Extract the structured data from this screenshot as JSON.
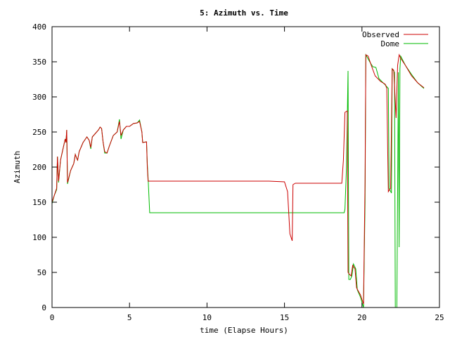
{
  "chart_data": {
    "type": "line",
    "title": "5: Azimuth vs. Time",
    "xlabel": "time (Elapse Hours)",
    "ylabel": "Azimuth",
    "xlim": [
      0,
      25
    ],
    "ylim": [
      0,
      400
    ],
    "xticks": [
      0,
      5,
      10,
      15,
      20,
      25
    ],
    "yticks": [
      0,
      50,
      100,
      150,
      200,
      250,
      300,
      350,
      400
    ],
    "grid": false,
    "legend": "top-right",
    "series": [
      {
        "name": "Observed",
        "color": "#cc0000",
        "points": [
          [
            0.0,
            150
          ],
          [
            0.15,
            160
          ],
          [
            0.3,
            170
          ],
          [
            0.35,
            215
          ],
          [
            0.42,
            180
          ],
          [
            0.55,
            210
          ],
          [
            0.75,
            230
          ],
          [
            0.85,
            240
          ],
          [
            0.9,
            235
          ],
          [
            0.95,
            253
          ],
          [
            1.0,
            178
          ],
          [
            1.2,
            195
          ],
          [
            1.4,
            205
          ],
          [
            1.5,
            218
          ],
          [
            1.6,
            212
          ],
          [
            1.65,
            210
          ],
          [
            1.75,
            222
          ],
          [
            2.0,
            235
          ],
          [
            2.25,
            243
          ],
          [
            2.4,
            238
          ],
          [
            2.5,
            228
          ],
          [
            2.6,
            243
          ],
          [
            2.8,
            248
          ],
          [
            3.0,
            253
          ],
          [
            3.1,
            257
          ],
          [
            3.2,
            255
          ],
          [
            3.3,
            235
          ],
          [
            3.4,
            222
          ],
          [
            3.55,
            220
          ],
          [
            3.7,
            230
          ],
          [
            3.95,
            245
          ],
          [
            4.2,
            250
          ],
          [
            4.35,
            265
          ],
          [
            4.45,
            245
          ],
          [
            4.6,
            253
          ],
          [
            4.8,
            258
          ],
          [
            5.0,
            258
          ],
          [
            5.25,
            262
          ],
          [
            5.5,
            263
          ],
          [
            5.65,
            265
          ],
          [
            5.8,
            250
          ],
          [
            5.85,
            235
          ],
          [
            6.1,
            236
          ],
          [
            6.15,
            200
          ],
          [
            6.2,
            180
          ],
          [
            14.0,
            180
          ],
          [
            15.0,
            179
          ],
          [
            15.2,
            165
          ],
          [
            15.35,
            105
          ],
          [
            15.5,
            95
          ],
          [
            15.55,
            175
          ],
          [
            15.7,
            177
          ],
          [
            18.7,
            177
          ],
          [
            18.8,
            210
          ],
          [
            18.9,
            278
          ],
          [
            19.05,
            280
          ],
          [
            19.1,
            50
          ],
          [
            19.2,
            47
          ],
          [
            19.3,
            45
          ],
          [
            19.4,
            60
          ],
          [
            19.55,
            55
          ],
          [
            19.65,
            28
          ],
          [
            19.9,
            18
          ],
          [
            20.1,
            5
          ],
          [
            20.2,
            180
          ],
          [
            20.25,
            360
          ],
          [
            20.4,
            358
          ],
          [
            20.6,
            345
          ],
          [
            20.85,
            330
          ],
          [
            21.2,
            322
          ],
          [
            21.5,
            318
          ],
          [
            21.6,
            312
          ],
          [
            21.7,
            165
          ],
          [
            21.85,
            170
          ],
          [
            21.95,
            340
          ],
          [
            22.05,
            338
          ],
          [
            22.2,
            270
          ],
          [
            22.3,
            345
          ],
          [
            22.4,
            360
          ],
          [
            22.5,
            355
          ],
          [
            22.8,
            345
          ],
          [
            23.2,
            330
          ],
          [
            23.6,
            320
          ],
          [
            24.0,
            313
          ]
        ]
      },
      {
        "name": "Dome",
        "color": "#00bb00",
        "points": [
          [
            0.0,
            148
          ],
          [
            0.15,
            160
          ],
          [
            0.3,
            168
          ],
          [
            0.35,
            215
          ],
          [
            0.42,
            178
          ],
          [
            0.55,
            210
          ],
          [
            0.75,
            230
          ],
          [
            0.85,
            240
          ],
          [
            0.9,
            235
          ],
          [
            0.95,
            253
          ],
          [
            1.0,
            176
          ],
          [
            1.2,
            195
          ],
          [
            1.4,
            205
          ],
          [
            1.5,
            218
          ],
          [
            1.6,
            212
          ],
          [
            1.65,
            210
          ],
          [
            1.75,
            222
          ],
          [
            2.0,
            235
          ],
          [
            2.25,
            243
          ],
          [
            2.4,
            238
          ],
          [
            2.5,
            226
          ],
          [
            2.6,
            243
          ],
          [
            2.8,
            248
          ],
          [
            3.0,
            253
          ],
          [
            3.1,
            257
          ],
          [
            3.2,
            255
          ],
          [
            3.3,
            235
          ],
          [
            3.4,
            220
          ],
          [
            3.55,
            220
          ],
          [
            3.7,
            230
          ],
          [
            3.95,
            245
          ],
          [
            4.2,
            250
          ],
          [
            4.35,
            268
          ],
          [
            4.45,
            240
          ],
          [
            4.6,
            253
          ],
          [
            4.8,
            258
          ],
          [
            5.0,
            258
          ],
          [
            5.25,
            262
          ],
          [
            5.5,
            263
          ],
          [
            5.65,
            267
          ],
          [
            5.8,
            250
          ],
          [
            5.85,
            235
          ],
          [
            6.1,
            236
          ],
          [
            6.15,
            205
          ],
          [
            6.2,
            185
          ],
          [
            6.3,
            135
          ],
          [
            18.85,
            135
          ],
          [
            18.9,
            140
          ],
          [
            19.0,
            200
          ],
          [
            19.1,
            337
          ],
          [
            19.15,
            40
          ],
          [
            19.25,
            40
          ],
          [
            19.35,
            45
          ],
          [
            19.45,
            62
          ],
          [
            19.6,
            55
          ],
          [
            19.7,
            25
          ],
          [
            19.9,
            15
          ],
          [
            20.1,
            0
          ],
          [
            20.2,
            150
          ],
          [
            20.25,
            360
          ],
          [
            20.5,
            350
          ],
          [
            20.7,
            343
          ],
          [
            20.9,
            342
          ],
          [
            21.1,
            326
          ],
          [
            21.5,
            317
          ],
          [
            21.7,
            312
          ],
          [
            21.75,
            170
          ],
          [
            21.9,
            163
          ],
          [
            21.95,
            340
          ],
          [
            22.1,
            335
          ],
          [
            22.15,
            0
          ],
          [
            22.25,
            0
          ],
          [
            22.35,
            335
          ],
          [
            22.4,
            86
          ],
          [
            22.45,
            340
          ],
          [
            22.5,
            358
          ],
          [
            22.8,
            345
          ],
          [
            23.2,
            332
          ],
          [
            23.6,
            320
          ],
          [
            24.0,
            312
          ]
        ]
      }
    ]
  }
}
